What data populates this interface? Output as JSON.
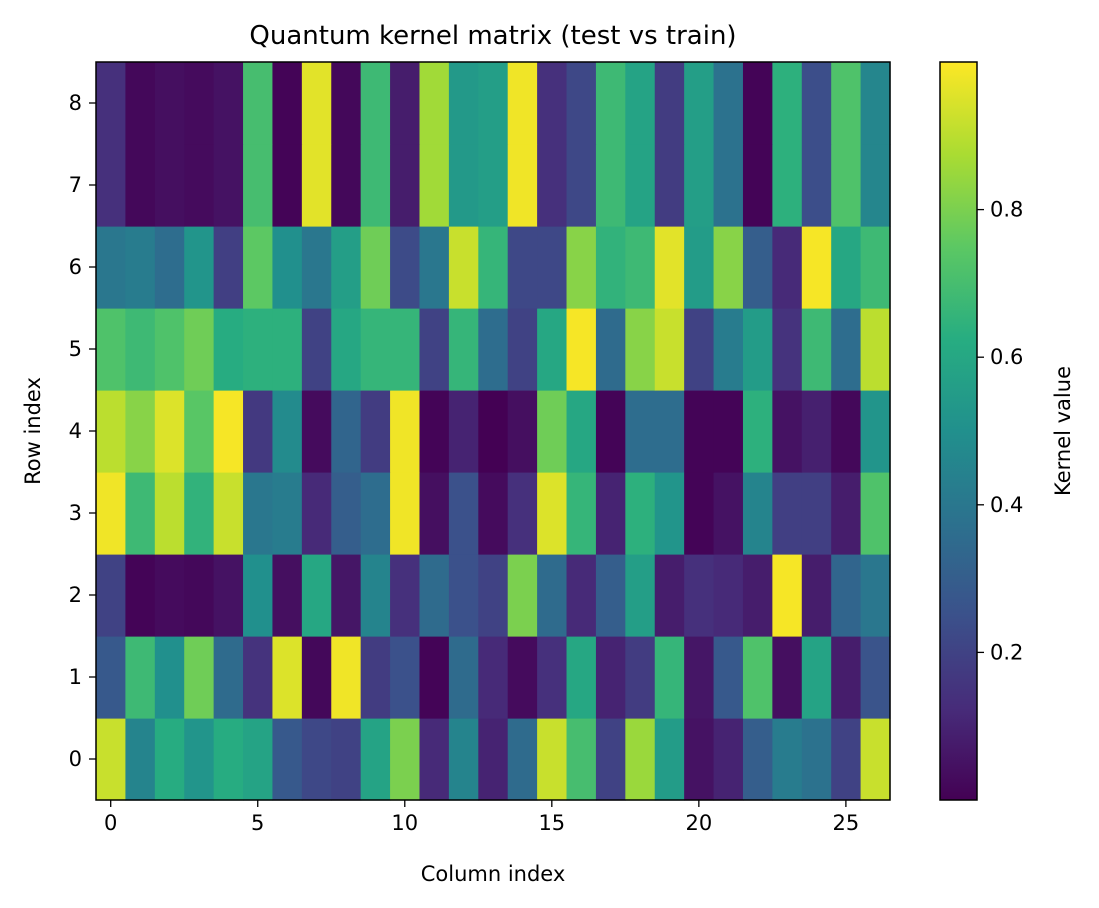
{
  "chart_data": {
    "type": "heatmap",
    "title": "Quantum kernel matrix (test vs train)",
    "xlabel": "Column index",
    "ylabel": "Row index",
    "colorbar_label": "Kernel value",
    "colormap": "viridis",
    "vmin": 0.0,
    "vmax": 1.0,
    "n_cols": 27,
    "n_rows": 9,
    "xticks": [
      0,
      5,
      10,
      15,
      20,
      25
    ],
    "yticks": [
      0,
      1,
      2,
      3,
      4,
      5,
      6,
      7,
      8
    ],
    "colorbar_ticks": [
      0.2,
      0.4,
      0.6,
      0.8
    ],
    "rows": [
      [
        0.92,
        0.45,
        0.62,
        0.52,
        0.62,
        0.58,
        0.28,
        0.22,
        0.2,
        0.58,
        0.8,
        0.12,
        0.45,
        0.1,
        0.35,
        0.92,
        0.7,
        0.2,
        0.85,
        0.55,
        0.05,
        0.1,
        0.3,
        0.42,
        0.38,
        0.2,
        0.92
      ],
      [
        0.28,
        0.68,
        0.5,
        0.78,
        0.35,
        0.15,
        0.95,
        0.02,
        0.98,
        0.18,
        0.25,
        0.01,
        0.35,
        0.12,
        0.03,
        0.14,
        0.6,
        0.1,
        0.18,
        0.66,
        0.06,
        0.28,
        0.72,
        0.04,
        0.58,
        0.08,
        0.26
      ],
      [
        0.2,
        0.01,
        0.03,
        0.02,
        0.05,
        0.5,
        0.04,
        0.6,
        0.06,
        0.45,
        0.14,
        0.35,
        0.25,
        0.2,
        0.8,
        0.35,
        0.12,
        0.3,
        0.56,
        0.08,
        0.14,
        0.12,
        0.08,
        0.99,
        0.08,
        0.33,
        0.4
      ],
      [
        0.98,
        0.68,
        0.9,
        0.65,
        0.92,
        0.4,
        0.42,
        0.12,
        0.3,
        0.36,
        0.98,
        0.04,
        0.25,
        0.03,
        0.14,
        0.95,
        0.66,
        0.1,
        0.64,
        0.52,
        0.01,
        0.05,
        0.45,
        0.19,
        0.19,
        0.08,
        0.72
      ],
      [
        0.9,
        0.82,
        0.95,
        0.74,
        0.99,
        0.17,
        0.48,
        0.03,
        0.33,
        0.18,
        0.98,
        0.01,
        0.1,
        0.0,
        0.04,
        0.78,
        0.6,
        0.01,
        0.36,
        0.36,
        0.01,
        0.01,
        0.64,
        0.05,
        0.09,
        0.02,
        0.52
      ],
      [
        0.72,
        0.68,
        0.72,
        0.78,
        0.62,
        0.64,
        0.64,
        0.2,
        0.6,
        0.66,
        0.66,
        0.2,
        0.66,
        0.36,
        0.2,
        0.6,
        0.99,
        0.35,
        0.82,
        0.92,
        0.2,
        0.42,
        0.55,
        0.15,
        0.68,
        0.36,
        0.9
      ],
      [
        0.4,
        0.42,
        0.36,
        0.52,
        0.19,
        0.75,
        0.5,
        0.4,
        0.56,
        0.78,
        0.23,
        0.4,
        0.92,
        0.66,
        0.22,
        0.22,
        0.82,
        0.65,
        0.68,
        0.96,
        0.55,
        0.82,
        0.3,
        0.12,
        0.99,
        0.6,
        0.68
      ],
      [
        0.14,
        0.02,
        0.04,
        0.03,
        0.05,
        0.7,
        0.01,
        0.96,
        0.02,
        0.68,
        0.08,
        0.86,
        0.54,
        0.56,
        0.98,
        0.14,
        0.22,
        0.68,
        0.58,
        0.18,
        0.56,
        0.38,
        0.01,
        0.64,
        0.24,
        0.72,
        0.46
      ],
      [
        0.14,
        0.02,
        0.04,
        0.03,
        0.05,
        0.7,
        0.01,
        0.96,
        0.02,
        0.68,
        0.08,
        0.86,
        0.54,
        0.56,
        0.98,
        0.14,
        0.22,
        0.68,
        0.58,
        0.18,
        0.56,
        0.38,
        0.01,
        0.64,
        0.24,
        0.72,
        0.46
      ]
    ]
  }
}
